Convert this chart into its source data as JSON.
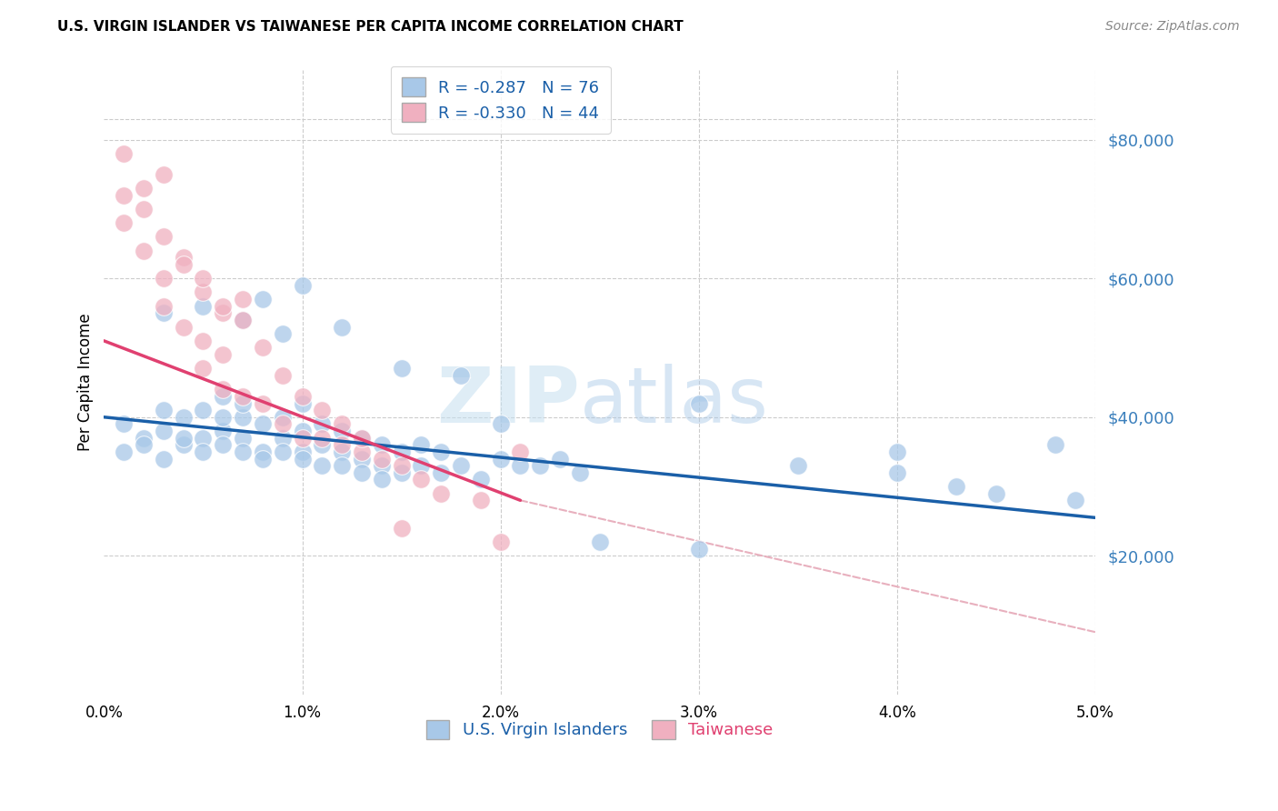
{
  "title": "U.S. VIRGIN ISLANDER VS TAIWANESE PER CAPITA INCOME CORRELATION CHART",
  "source": "Source: ZipAtlas.com",
  "ylabel": "Per Capita Income",
  "ytick_labels": [
    "$20,000",
    "$40,000",
    "$60,000",
    "$80,000"
  ],
  "ytick_values": [
    20000,
    40000,
    60000,
    80000
  ],
  "legend_label1": "R = -0.287   N = 76",
  "legend_label2": "R = -0.330   N = 44",
  "legend_entry1": "U.S. Virgin Islanders",
  "legend_entry2": "Taiwanese",
  "color_blue": "#a8c8e8",
  "color_blue_line": "#1a5fa8",
  "color_pink": "#f0b0c0",
  "color_pink_line": "#e04070",
  "color_dashed": "#e8b0be",
  "watermark_zip": "ZIP",
  "watermark_atlas": "atlas",
  "xmin": 0.0,
  "xmax": 0.05,
  "ymin": 0,
  "ymax": 90000,
  "blue_x": [
    0.001,
    0.002,
    0.003,
    0.003,
    0.004,
    0.004,
    0.005,
    0.005,
    0.006,
    0.006,
    0.006,
    0.007,
    0.007,
    0.007,
    0.008,
    0.008,
    0.009,
    0.009,
    0.01,
    0.01,
    0.01,
    0.011,
    0.011,
    0.012,
    0.012,
    0.013,
    0.013,
    0.014,
    0.014,
    0.015,
    0.015,
    0.016,
    0.016,
    0.017,
    0.017,
    0.018,
    0.019,
    0.02,
    0.021,
    0.022,
    0.023,
    0.024,
    0.001,
    0.002,
    0.003,
    0.004,
    0.005,
    0.006,
    0.007,
    0.008,
    0.009,
    0.01,
    0.011,
    0.012,
    0.013,
    0.014,
    0.003,
    0.005,
    0.007,
    0.008,
    0.009,
    0.01,
    0.012,
    0.015,
    0.018,
    0.02,
    0.025,
    0.03,
    0.035,
    0.04,
    0.043,
    0.045,
    0.048,
    0.049,
    0.03,
    0.04
  ],
  "blue_y": [
    39000,
    37000,
    38000,
    41000,
    36000,
    40000,
    37000,
    41000,
    38000,
    40000,
    43000,
    37000,
    40000,
    42000,
    35000,
    39000,
    37000,
    40000,
    35000,
    38000,
    42000,
    36000,
    39000,
    35000,
    38000,
    34000,
    37000,
    33000,
    36000,
    32000,
    35000,
    33000,
    36000,
    32000,
    35000,
    33000,
    31000,
    34000,
    33000,
    33000,
    34000,
    32000,
    35000,
    36000,
    34000,
    37000,
    35000,
    36000,
    35000,
    34000,
    35000,
    34000,
    33000,
    33000,
    32000,
    31000,
    55000,
    56000,
    54000,
    57000,
    52000,
    59000,
    53000,
    47000,
    46000,
    39000,
    22000,
    42000,
    33000,
    32000,
    30000,
    29000,
    36000,
    28000,
    21000,
    35000
  ],
  "pink_x": [
    0.001,
    0.001,
    0.002,
    0.002,
    0.003,
    0.003,
    0.003,
    0.004,
    0.004,
    0.005,
    0.005,
    0.005,
    0.006,
    0.006,
    0.006,
    0.007,
    0.007,
    0.008,
    0.008,
    0.009,
    0.009,
    0.01,
    0.01,
    0.011,
    0.011,
    0.012,
    0.012,
    0.013,
    0.014,
    0.015,
    0.016,
    0.017,
    0.019,
    0.021,
    0.001,
    0.002,
    0.003,
    0.004,
    0.005,
    0.006,
    0.007,
    0.013,
    0.015,
    0.02
  ],
  "pink_y": [
    68000,
    72000,
    64000,
    70000,
    56000,
    60000,
    75000,
    53000,
    63000,
    47000,
    51000,
    58000,
    44000,
    49000,
    55000,
    43000,
    54000,
    42000,
    50000,
    39000,
    46000,
    37000,
    43000,
    37000,
    41000,
    36000,
    39000,
    35000,
    34000,
    33000,
    31000,
    29000,
    28000,
    35000,
    78000,
    73000,
    66000,
    62000,
    60000,
    56000,
    57000,
    37000,
    24000,
    22000
  ],
  "blue_trendline_x": [
    0.0,
    0.05
  ],
  "blue_trendline_y": [
    40000,
    25500
  ],
  "pink_trendline_x": [
    0.0,
    0.021
  ],
  "pink_trendline_y": [
    51000,
    28000
  ],
  "dashed_trendline_x": [
    0.021,
    0.05
  ],
  "dashed_trendline_y": [
    28000,
    9000
  ]
}
